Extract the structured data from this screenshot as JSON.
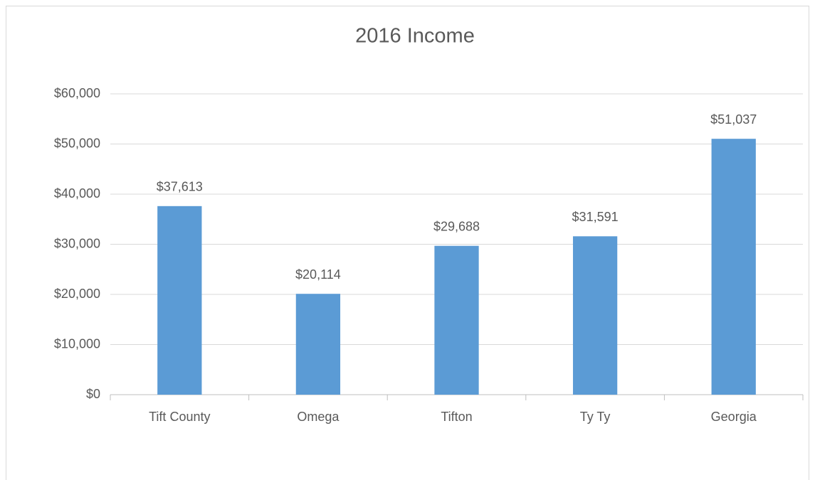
{
  "chart_data": {
    "type": "bar",
    "title": "2016 Income",
    "categories": [
      "Tift County",
      "Omega",
      "Tifton",
      "Ty Ty",
      "Georgia"
    ],
    "values": [
      37613,
      20114,
      29688,
      31591,
      51037
    ],
    "value_labels": [
      "$37,613",
      "$20,114",
      "$29,688",
      "$31,591",
      "$51,037"
    ],
    "color": "#5b9bd5",
    "ylim": [
      0,
      60000
    ],
    "yticks": [
      {
        "value": 0,
        "label": "$0"
      },
      {
        "value": 10000,
        "label": "$10,000"
      },
      {
        "value": 20000,
        "label": "$20,000"
      },
      {
        "value": 30000,
        "label": "$30,000"
      },
      {
        "value": 40000,
        "label": "$40,000"
      },
      {
        "value": 50000,
        "label": "$50,000"
      },
      {
        "value": 60000,
        "label": "$60,000"
      }
    ],
    "grid": true
  }
}
